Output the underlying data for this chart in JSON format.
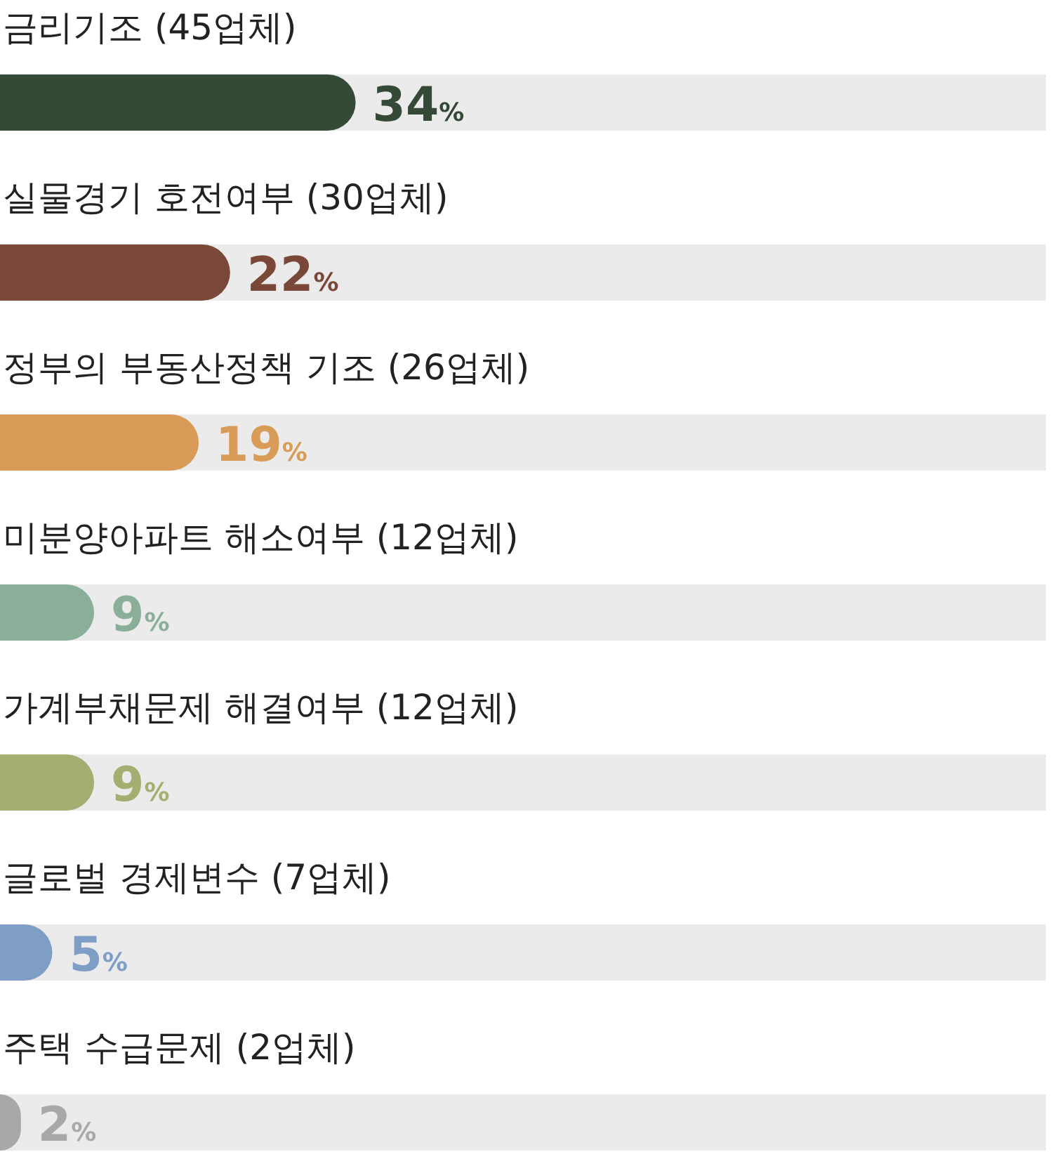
{
  "chart_data": {
    "type": "bar",
    "orientation": "horizontal",
    "categories": [
      "금리기조 (45업체)",
      "실물경기 호전여부 (30업체)",
      "정부의 부동산정책 기조 (26업체)",
      "미분양아파트 해소여부 (12업체)",
      "가계부채문제 해결여부 (12업체)",
      "글로벌 경제변수 (7업체)",
      "주택 수급문제 (2업체)"
    ],
    "values": [
      34,
      22,
      19,
      9,
      9,
      5,
      2
    ],
    "colors": [
      "#344a36",
      "#7a4838",
      "#d89c58",
      "#8aae98",
      "#a5ae70",
      "#7f9ec6",
      "#a8a8aa"
    ],
    "value_labels": [
      "34%",
      "22%",
      "19%",
      "9%",
      "9%",
      "5%",
      "2%"
    ],
    "xlim": [
      0,
      100
    ],
    "tick_labels": false,
    "grid": false
  }
}
